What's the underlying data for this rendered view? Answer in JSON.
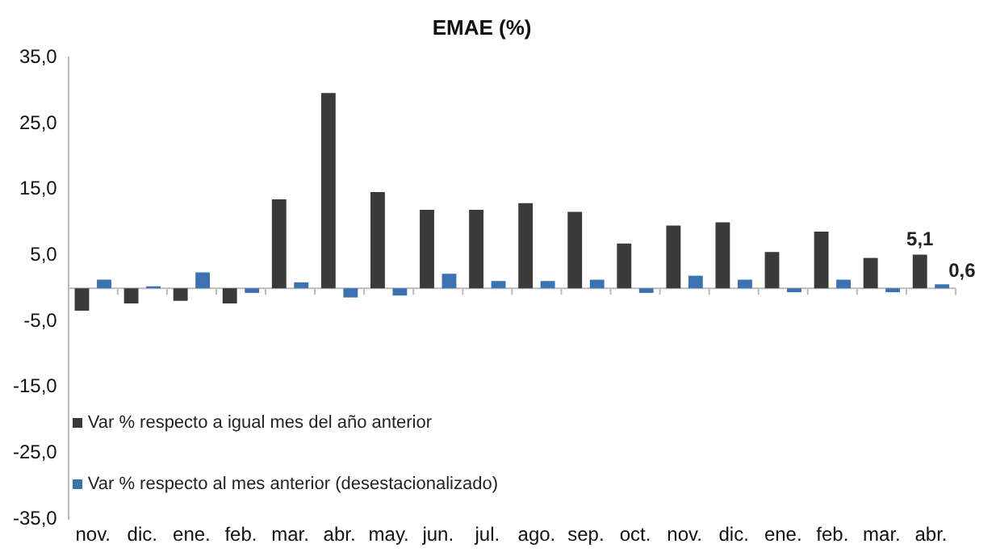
{
  "chart_data": {
    "type": "bar",
    "title": "EMAE (%)",
    "categories": [
      "nov.",
      "dic.",
      "ene.",
      "feb.",
      "mar.",
      "abr.",
      "may.",
      "jun.",
      "jul.",
      "ago.",
      "sep.",
      "oct.",
      "nov.",
      "dic.",
      "ene.",
      "feb.",
      "mar.",
      "abr."
    ],
    "series": [
      {
        "name": "Var % respecto a igual mes del año anterior",
        "color": "#3a3a3a",
        "values": [
          -3.4,
          -2.3,
          -1.9,
          -2.3,
          13.5,
          29.6,
          14.6,
          11.9,
          11.9,
          12.9,
          11.6,
          6.8,
          9.5,
          10.0,
          5.5,
          8.6,
          4.6,
          5.1
        ],
        "value_labels": [
          null,
          null,
          null,
          null,
          null,
          null,
          null,
          null,
          null,
          null,
          null,
          null,
          null,
          null,
          null,
          null,
          null,
          "5,1"
        ]
      },
      {
        "name": "Var % respecto al mes anterior (desestacionalizado)",
        "color": "#3d72b0",
        "values": [
          1.3,
          0.3,
          2.4,
          -0.7,
          0.9,
          -1.4,
          -1.1,
          2.2,
          1.1,
          1.1,
          1.3,
          -0.7,
          1.9,
          1.3,
          -0.6,
          1.3,
          -0.6,
          0.6
        ],
        "value_labels": [
          null,
          null,
          null,
          null,
          null,
          null,
          null,
          null,
          null,
          null,
          null,
          null,
          null,
          null,
          null,
          null,
          null,
          "0,6"
        ]
      }
    ],
    "ylim": [
      -35,
      35
    ],
    "yticks": [
      {
        "value": -35,
        "label": "-35,0"
      },
      {
        "value": -25,
        "label": "-25,0"
      },
      {
        "value": -15,
        "label": "-15,0"
      },
      {
        "value": -5,
        "label": "-5,0"
      },
      {
        "value": 5,
        "label": "5,0"
      },
      {
        "value": 15,
        "label": "15,0"
      },
      {
        "value": 25,
        "label": "25,0"
      },
      {
        "value": 35,
        "label": "35,0"
      }
    ],
    "grid": false,
    "legend": "bottom left"
  }
}
